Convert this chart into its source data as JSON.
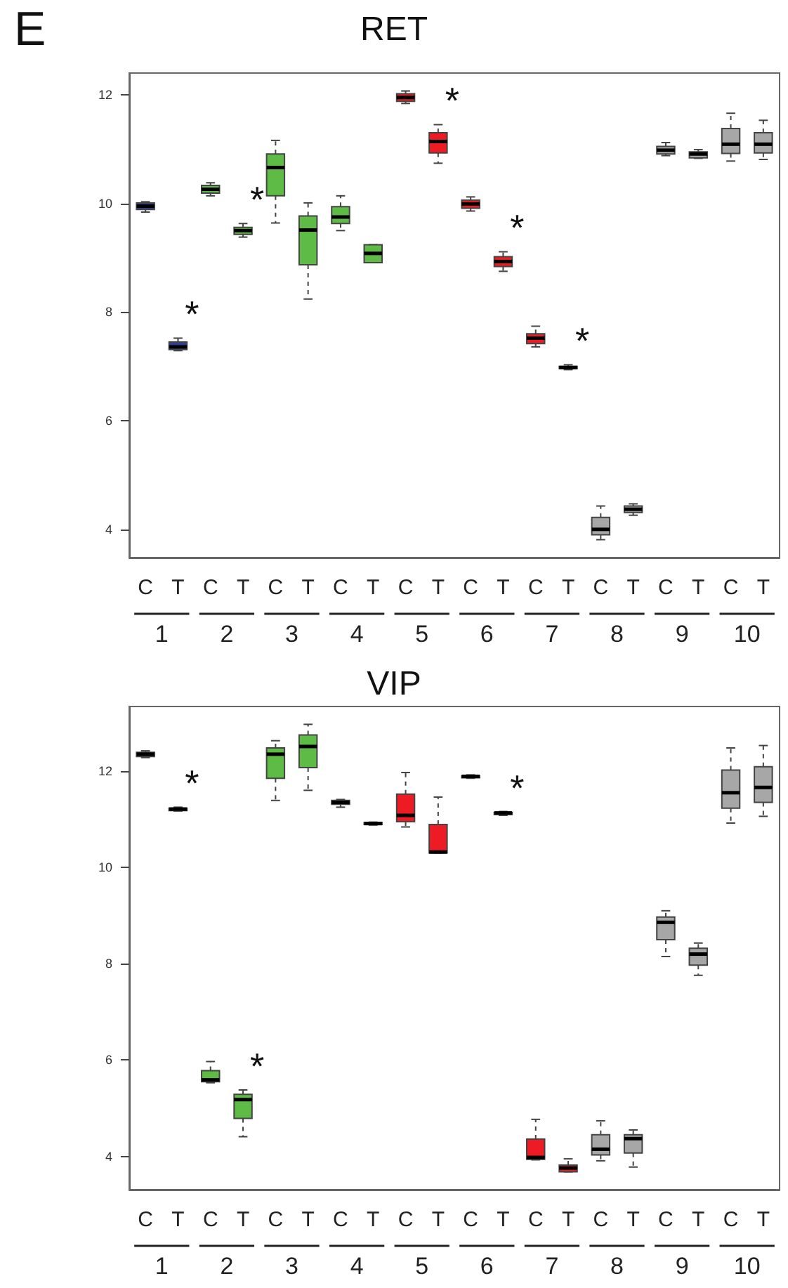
{
  "chart_data": [
    {
      "type": "box",
      "title": "RET",
      "categories": [
        "C",
        "T",
        "C",
        "T",
        "C",
        "T",
        "C",
        "T",
        "C",
        "T",
        "C",
        "T",
        "C",
        "T",
        "C",
        "T",
        "C",
        "T",
        "C",
        "T"
      ],
      "boxes": [
        {
          "low": 9.84,
          "q1": 9.89,
          "median": 9.95,
          "q3": 10.01,
          "high": 10.03
        },
        {
          "low": 7.29,
          "q1": 7.31,
          "median": 7.36,
          "q3": 7.45,
          "high": 7.52
        },
        {
          "low": 10.14,
          "q1": 10.19,
          "median": 10.26,
          "q3": 10.33,
          "high": 10.38
        },
        {
          "low": 9.38,
          "q1": 9.43,
          "median": 9.5,
          "q3": 9.56,
          "high": 9.63
        },
        {
          "low": 9.64,
          "q1": 10.14,
          "median": 10.66,
          "q3": 10.91,
          "high": 11.16
        },
        {
          "low": 8.24,
          "q1": 8.87,
          "median": 9.51,
          "q3": 9.77,
          "high": 10.01
        },
        {
          "low": 9.5,
          "q1": 9.63,
          "median": 9.75,
          "q3": 9.94,
          "high": 10.14
        },
        {
          "low": 8.91,
          "q1": 8.91,
          "median": 9.08,
          "q3": 9.24,
          "high": 9.24
        },
        {
          "low": 11.84,
          "q1": 11.88,
          "median": 11.95,
          "q3": 12.02,
          "high": 12.07
        },
        {
          "low": 10.74,
          "q1": 10.93,
          "median": 11.14,
          "q3": 11.3,
          "high": 11.45
        },
        {
          "low": 9.86,
          "q1": 9.91,
          "median": 9.99,
          "q3": 10.06,
          "high": 10.12
        },
        {
          "low": 8.75,
          "q1": 8.84,
          "median": 8.93,
          "q3": 9.02,
          "high": 9.11
        },
        {
          "low": 7.36,
          "q1": 7.42,
          "median": 7.52,
          "q3": 7.6,
          "high": 7.74
        },
        {
          "low": 6.94,
          "q1": 6.96,
          "median": 6.98,
          "q3": 7.0,
          "high": 7.03
        },
        {
          "low": 3.81,
          "q1": 3.9,
          "median": 4.0,
          "q3": 4.22,
          "high": 4.43
        },
        {
          "low": 4.26,
          "q1": 4.31,
          "median": 4.37,
          "q3": 4.43,
          "high": 4.47
        },
        {
          "low": 10.88,
          "q1": 10.91,
          "median": 10.98,
          "q3": 11.05,
          "high": 11.12
        },
        {
          "low": 10.83,
          "q1": 10.84,
          "median": 10.91,
          "q3": 10.95,
          "high": 10.99
        },
        {
          "low": 10.78,
          "q1": 10.92,
          "median": 11.09,
          "q3": 11.38,
          "high": 11.66
        },
        {
          "low": 10.81,
          "q1": 10.93,
          "median": 11.09,
          "q3": 11.3,
          "high": 11.53
        }
      ],
      "colors": [
        "#2e3f9a",
        "#2e3f9a",
        "#5dbb46",
        "#5dbb46",
        "#5dbb46",
        "#5dbb46",
        "#5dbb46",
        "#5dbb46",
        "#ed1c24",
        "#ed1c24",
        "#ed1c24",
        "#ed1c24",
        "#ed1c24",
        "#ed1c24",
        "#a7a7a7",
        "#a7a7a7",
        "#a7a7a7",
        "#a7a7a7",
        "#a7a7a7",
        "#a7a7a7"
      ],
      "value_labels": [
        null,
        "*",
        null,
        "*",
        null,
        null,
        null,
        null,
        null,
        "*",
        null,
        "*",
        null,
        "*",
        null,
        null,
        null,
        null,
        null,
        null
      ],
      "ylim": [
        3.48,
        12.4
      ],
      "yticks": [
        4,
        6,
        8,
        10,
        12
      ],
      "annotations": [
        "E",
        "1",
        "2",
        "3",
        "4",
        "5",
        "6",
        "7",
        "8",
        "9",
        "10"
      ]
    },
    {
      "type": "box",
      "title": "VIP",
      "categories": [
        "C",
        "T",
        "C",
        "T",
        "C",
        "T",
        "C",
        "T",
        "C",
        "T",
        "C",
        "T",
        "C",
        "T",
        "C",
        "T",
        "C",
        "T",
        "C",
        "T"
      ],
      "boxes": [
        {
          "low": 12.28,
          "q1": 12.3,
          "median": 12.35,
          "q3": 12.39,
          "high": 12.42
        },
        {
          "low": 11.17,
          "q1": 11.18,
          "median": 11.21,
          "q3": 11.23,
          "high": 11.25
        },
        {
          "low": 5.53,
          "q1": 5.55,
          "median": 5.59,
          "q3": 5.78,
          "high": 5.97
        },
        {
          "low": 4.41,
          "q1": 4.79,
          "median": 5.18,
          "q3": 5.29,
          "high": 5.38
        },
        {
          "low": 11.39,
          "q1": 11.85,
          "median": 12.35,
          "q3": 12.48,
          "high": 12.63
        },
        {
          "low": 11.6,
          "q1": 12.07,
          "median": 12.51,
          "q3": 12.75,
          "high": 12.97
        },
        {
          "low": 11.25,
          "q1": 11.31,
          "median": 11.35,
          "q3": 11.39,
          "high": 11.41
        },
        {
          "low": 10.88,
          "q1": 10.89,
          "median": 10.91,
          "q3": 10.93,
          "high": 10.94
        },
        {
          "low": 10.84,
          "q1": 10.95,
          "median": 11.08,
          "q3": 11.52,
          "high": 11.97
        },
        {
          "low": 10.3,
          "q1": 10.3,
          "median": 10.32,
          "q3": 10.89,
          "high": 11.46
        },
        {
          "low": 11.85,
          "q1": 11.86,
          "median": 11.89,
          "q3": 11.9,
          "high": 11.92
        },
        {
          "low": 11.08,
          "q1": 11.1,
          "median": 11.13,
          "q3": 11.14,
          "high": 11.16
        },
        {
          "low": 3.93,
          "q1": 3.94,
          "median": 3.98,
          "q3": 4.36,
          "high": 4.77
        },
        {
          "low": 3.68,
          "q1": 3.68,
          "median": 3.76,
          "q3": 3.82,
          "high": 3.95
        },
        {
          "low": 3.91,
          "q1": 4.03,
          "median": 4.15,
          "q3": 4.45,
          "high": 4.74
        },
        {
          "low": 3.78,
          "q1": 4.07,
          "median": 4.37,
          "q3": 4.45,
          "high": 4.55
        },
        {
          "low": 8.15,
          "q1": 8.5,
          "median": 8.86,
          "q3": 8.97,
          "high": 9.1
        },
        {
          "low": 7.76,
          "q1": 7.97,
          "median": 8.2,
          "q3": 8.32,
          "high": 8.43
        },
        {
          "low": 10.92,
          "q1": 11.23,
          "median": 11.55,
          "q3": 12.02,
          "high": 12.48
        },
        {
          "low": 11.06,
          "q1": 11.35,
          "median": 11.66,
          "q3": 12.09,
          "high": 12.53
        }
      ],
      "colors": [
        "#2e3f9a",
        "#2e3f9a",
        "#5dbb46",
        "#5dbb46",
        "#5dbb46",
        "#5dbb46",
        "#5dbb46",
        "#5dbb46",
        "#ed1c24",
        "#ed1c24",
        "#ed1c24",
        "#ed1c24",
        "#ed1c24",
        "#ed1c24",
        "#a7a7a7",
        "#a7a7a7",
        "#a7a7a7",
        "#a7a7a7",
        "#a7a7a7",
        "#a7a7a7"
      ],
      "value_labels": [
        null,
        "*",
        null,
        "*",
        null,
        null,
        null,
        null,
        null,
        null,
        null,
        "*",
        null,
        null,
        null,
        null,
        null,
        null,
        null,
        null
      ],
      "ylim": [
        3.31,
        13.34
      ],
      "yticks": [
        4,
        6,
        8,
        10,
        12
      ],
      "annotations": [
        "1",
        "2",
        "3",
        "4",
        "5",
        "6",
        "7",
        "8",
        "9",
        "10"
      ]
    }
  ]
}
